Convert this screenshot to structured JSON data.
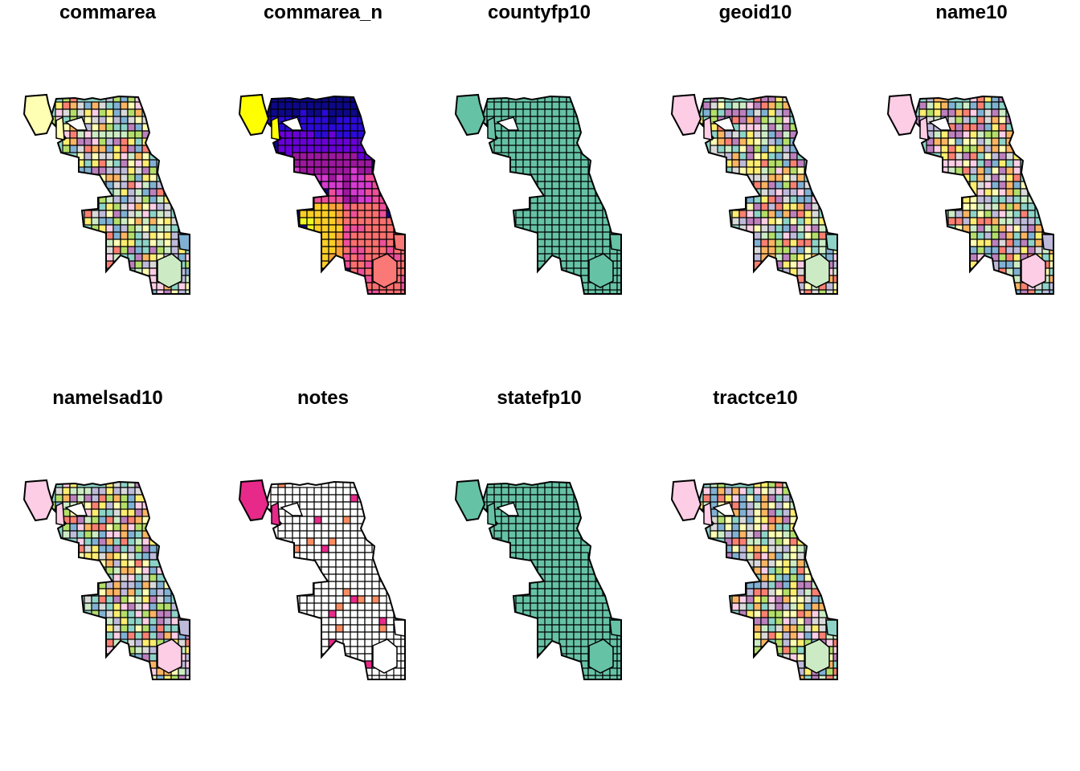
{
  "figure": {
    "panels": [
      {
        "title": "commarea",
        "fill": "categorical",
        "palette": [
          "#8DD3C7",
          "#FFFFB3",
          "#BEBADA",
          "#FB8072",
          "#80B1D3",
          "#FDB462",
          "#B3DE69",
          "#FCCDE5",
          "#D9D9D9",
          "#BC80BD",
          "#CCEBC5",
          "#FFED6F"
        ],
        "outlier_color": "#FFFFB3",
        "bottom_blob_color": "#CCEBC5",
        "strip_color": "#80B1D3"
      },
      {
        "title": "commarea_n",
        "fill": "sequential",
        "palette": [
          "#0D0887",
          "#2B0AD9",
          "#6A00D8",
          "#9C179E",
          "#D63AD1",
          "#ED4F9A",
          "#FA6F6F",
          "#FDA33A",
          "#FCCE25",
          "#F0F921"
        ],
        "outlier_color": "#FFFF00",
        "bottom_blob_color": "#FA7876",
        "strip_color": "#FA7876"
      },
      {
        "title": "countyfp10",
        "fill": "single",
        "palette": [
          "#66C2A5"
        ],
        "outlier_color": "#66C2A5",
        "bottom_blob_color": "#66C2A5",
        "strip_color": "#66C2A5"
      },
      {
        "title": "geoid10",
        "fill": "categorical",
        "palette": [
          "#8DD3C7",
          "#FFFFB3",
          "#BEBADA",
          "#FB8072",
          "#80B1D3",
          "#FDB462",
          "#B3DE69",
          "#FCCDE5",
          "#D9D9D9",
          "#BC80BD",
          "#CCEBC5",
          "#FFED6F"
        ],
        "outlier_color": "#FCCDE5",
        "bottom_blob_color": "#CCEBC5",
        "strip_color": "#8DD3C7"
      },
      {
        "title": "name10",
        "fill": "categorical",
        "palette": [
          "#8DD3C7",
          "#FFFFB3",
          "#BEBADA",
          "#FB8072",
          "#80B1D3",
          "#FDB462",
          "#B3DE69",
          "#FCCDE5",
          "#D9D9D9",
          "#BC80BD",
          "#CCEBC5",
          "#FFED6F"
        ],
        "outlier_color": "#FCCDE5",
        "bottom_blob_color": "#FCCDE5",
        "strip_color": "#BEBADA"
      },
      {
        "title": "namelsad10",
        "fill": "categorical",
        "palette": [
          "#8DD3C7",
          "#FFFFB3",
          "#BEBADA",
          "#FB8072",
          "#80B1D3",
          "#FDB462",
          "#B3DE69",
          "#FCCDE5",
          "#D9D9D9",
          "#BC80BD",
          "#CCEBC5",
          "#FFED6F"
        ],
        "outlier_color": "#FCCDE5",
        "bottom_blob_color": "#FCCDE5",
        "strip_color": "#BEBADA"
      },
      {
        "title": "notes",
        "fill": "mostly-missing",
        "palette": [
          "#FFFFFF"
        ],
        "highlight_colors": [
          "#E7298A",
          "#FC8D62"
        ],
        "outlier_color": "#E7298A",
        "bottom_blob_color": "#FFFFFF",
        "strip_color": "#FFFFFF"
      },
      {
        "title": "statefp10",
        "fill": "single",
        "palette": [
          "#66C2A5"
        ],
        "outlier_color": "#66C2A5",
        "bottom_blob_color": "#66C2A5",
        "strip_color": "#66C2A5"
      },
      {
        "title": "tractce10",
        "fill": "categorical",
        "palette": [
          "#8DD3C7",
          "#FFFFB3",
          "#BEBADA",
          "#FB8072",
          "#80B1D3",
          "#FDB462",
          "#B3DE69",
          "#FCCDE5",
          "#D9D9D9",
          "#BC80BD",
          "#CCEBC5",
          "#FFED6F"
        ],
        "outlier_color": "#FCCDE5",
        "bottom_blob_color": "#CCEBC5",
        "strip_color": "#8DD3C7"
      }
    ],
    "border_color": "#000000"
  }
}
